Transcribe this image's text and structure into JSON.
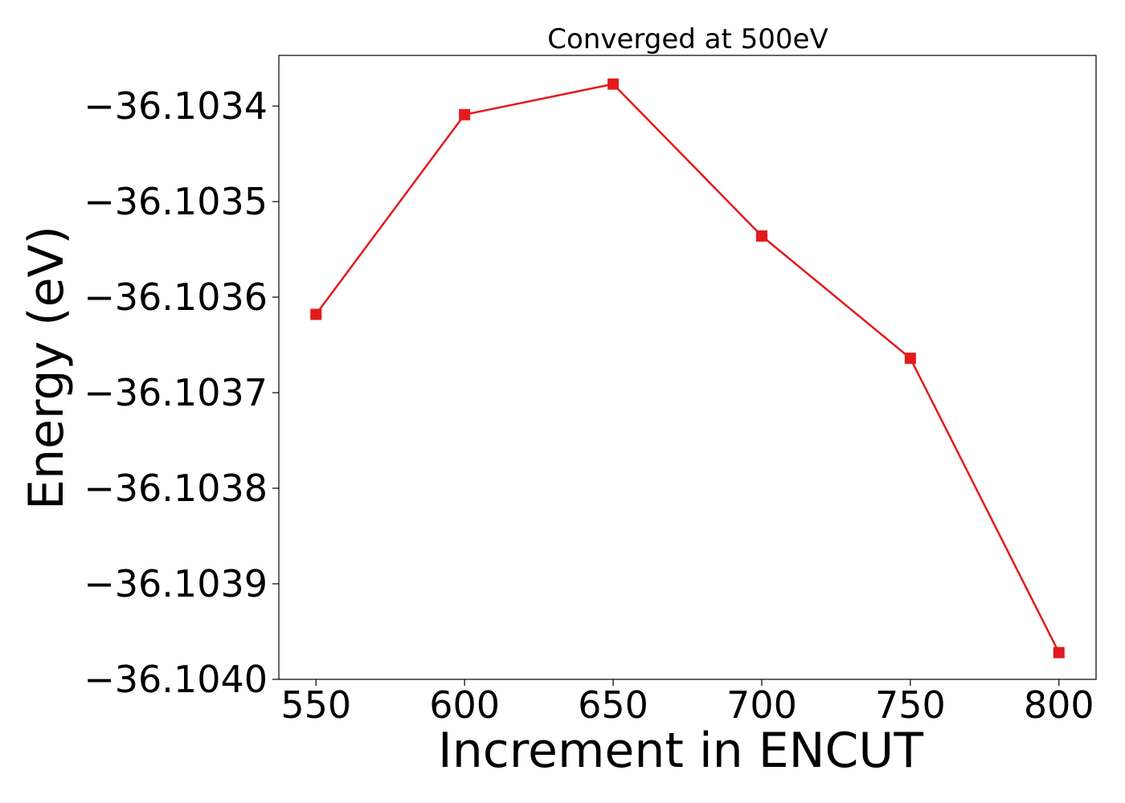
{
  "chart_data": {
    "type": "line",
    "title": "Converged at 500eV",
    "xlabel": "Increment in ENCUT",
    "ylabel": "Energy (eV)",
    "x": [
      550,
      600,
      650,
      700,
      750,
      800
    ],
    "series": [
      {
        "values": [
          -36.103618,
          -36.103409,
          -36.103377,
          -36.103536,
          -36.103664,
          -36.103972
        ]
      }
    ],
    "xticks": [
      550,
      600,
      650,
      700,
      750,
      800
    ],
    "xtick_labels": [
      "550",
      "600",
      "650",
      "700",
      "750",
      "800"
    ],
    "yticks": [
      -36.1034,
      -36.1035,
      -36.1036,
      -36.1037,
      -36.1038,
      -36.1039,
      -36.104
    ],
    "ytick_labels": [
      "−36.1034",
      "−36.1035",
      "−36.1036",
      "−36.1037",
      "−36.1038",
      "−36.1039",
      "−36.1040"
    ],
    "xlim": [
      537.5,
      812.5
    ],
    "ylim": [
      -36.104,
      -36.103347
    ],
    "grid": false,
    "line_color": "#e31a1c",
    "marker": "square"
  }
}
